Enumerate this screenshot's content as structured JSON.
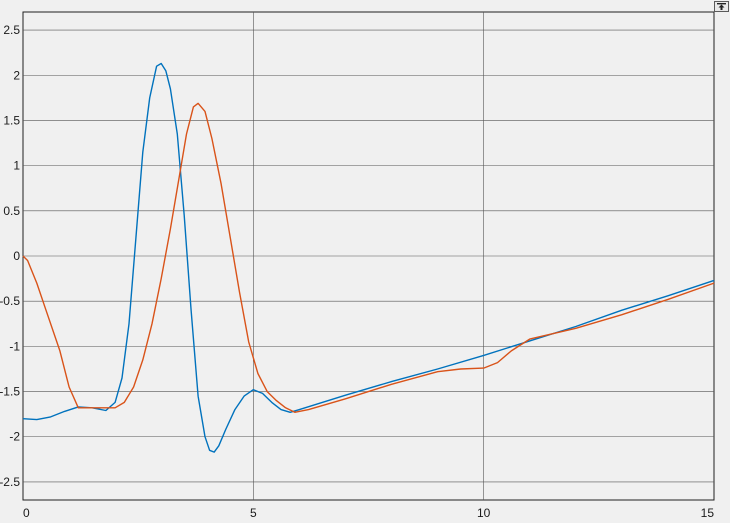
{
  "colors": {
    "series1": "#0072bd",
    "series2": "#d95319",
    "background": "#f0f0f0",
    "grid": "#555555"
  },
  "toolbar": {
    "restore_icon": "expand-arrow-icon"
  },
  "chart_data": {
    "type": "line",
    "xlim": [
      0,
      15
    ],
    "ylim": [
      -2.7,
      2.7
    ],
    "xticks": [
      0,
      5,
      10,
      15
    ],
    "yticks": [
      -2.5,
      -2,
      -1.5,
      -1,
      -0.5,
      0,
      0.5,
      1,
      1.5,
      2,
      2.5
    ],
    "xtick_labels": [
      "0",
      "5",
      "10",
      "15"
    ],
    "ytick_labels": [
      "-2.5",
      "-2",
      "-1.5",
      "-1",
      "-0.5",
      "0",
      "0.5",
      "1",
      "1.5",
      "2",
      "2.5"
    ],
    "grid": true,
    "legend": "none",
    "title": "",
    "xlabel": "",
    "ylabel": "",
    "series": [
      {
        "color": "#0072bd",
        "x": [
          0,
          0.3,
          0.6,
          0.9,
          1.2,
          1.5,
          1.8,
          2.0,
          2.15,
          2.3,
          2.45,
          2.6,
          2.75,
          2.9,
          3.0,
          3.1,
          3.2,
          3.35,
          3.5,
          3.65,
          3.8,
          3.95,
          4.05,
          4.15,
          4.25,
          4.4,
          4.6,
          4.8,
          5.0,
          5.2,
          5.4,
          5.6,
          5.8,
          6.0,
          7.0,
          8.0,
          9.0,
          10.0,
          11.0,
          12.0,
          13.0,
          14.0,
          15.0
        ],
        "y": [
          -1.8,
          -1.81,
          -1.78,
          -1.72,
          -1.67,
          -1.68,
          -1.71,
          -1.62,
          -1.35,
          -0.75,
          0.2,
          1.15,
          1.75,
          2.1,
          2.13,
          2.05,
          1.85,
          1.35,
          0.45,
          -0.6,
          -1.55,
          -2.0,
          -2.15,
          -2.17,
          -2.1,
          -1.92,
          -1.7,
          -1.55,
          -1.48,
          -1.52,
          -1.62,
          -1.7,
          -1.73,
          -1.7,
          -1.54,
          -1.39,
          -1.25,
          -1.1,
          -0.94,
          -0.78,
          -0.6,
          -0.44,
          -0.27
        ]
      },
      {
        "color": "#d95319",
        "x": [
          0,
          0.1,
          0.3,
          0.5,
          0.8,
          1.0,
          1.2,
          1.5,
          1.8,
          2.0,
          2.2,
          2.4,
          2.6,
          2.8,
          3.0,
          3.2,
          3.4,
          3.55,
          3.7,
          3.8,
          3.95,
          4.1,
          4.3,
          4.5,
          4.7,
          4.9,
          5.1,
          5.3,
          5.5,
          5.7,
          5.9,
          6.2,
          7.0,
          8.0,
          9.0,
          9.5,
          10.0,
          10.3,
          10.6,
          11.0,
          12.0,
          13.0,
          14.0,
          15.0
        ],
        "y": [
          0,
          -0.05,
          -0.3,
          -0.6,
          -1.05,
          -1.45,
          -1.68,
          -1.68,
          -1.68,
          -1.68,
          -1.62,
          -1.45,
          -1.15,
          -0.75,
          -0.25,
          0.3,
          0.9,
          1.35,
          1.65,
          1.69,
          1.6,
          1.3,
          0.8,
          0.2,
          -0.4,
          -0.95,
          -1.3,
          -1.5,
          -1.6,
          -1.68,
          -1.73,
          -1.7,
          -1.58,
          -1.42,
          -1.28,
          -1.25,
          -1.24,
          -1.18,
          -1.05,
          -0.92,
          -0.8,
          -0.65,
          -0.48,
          -0.3
        ]
      }
    ]
  }
}
